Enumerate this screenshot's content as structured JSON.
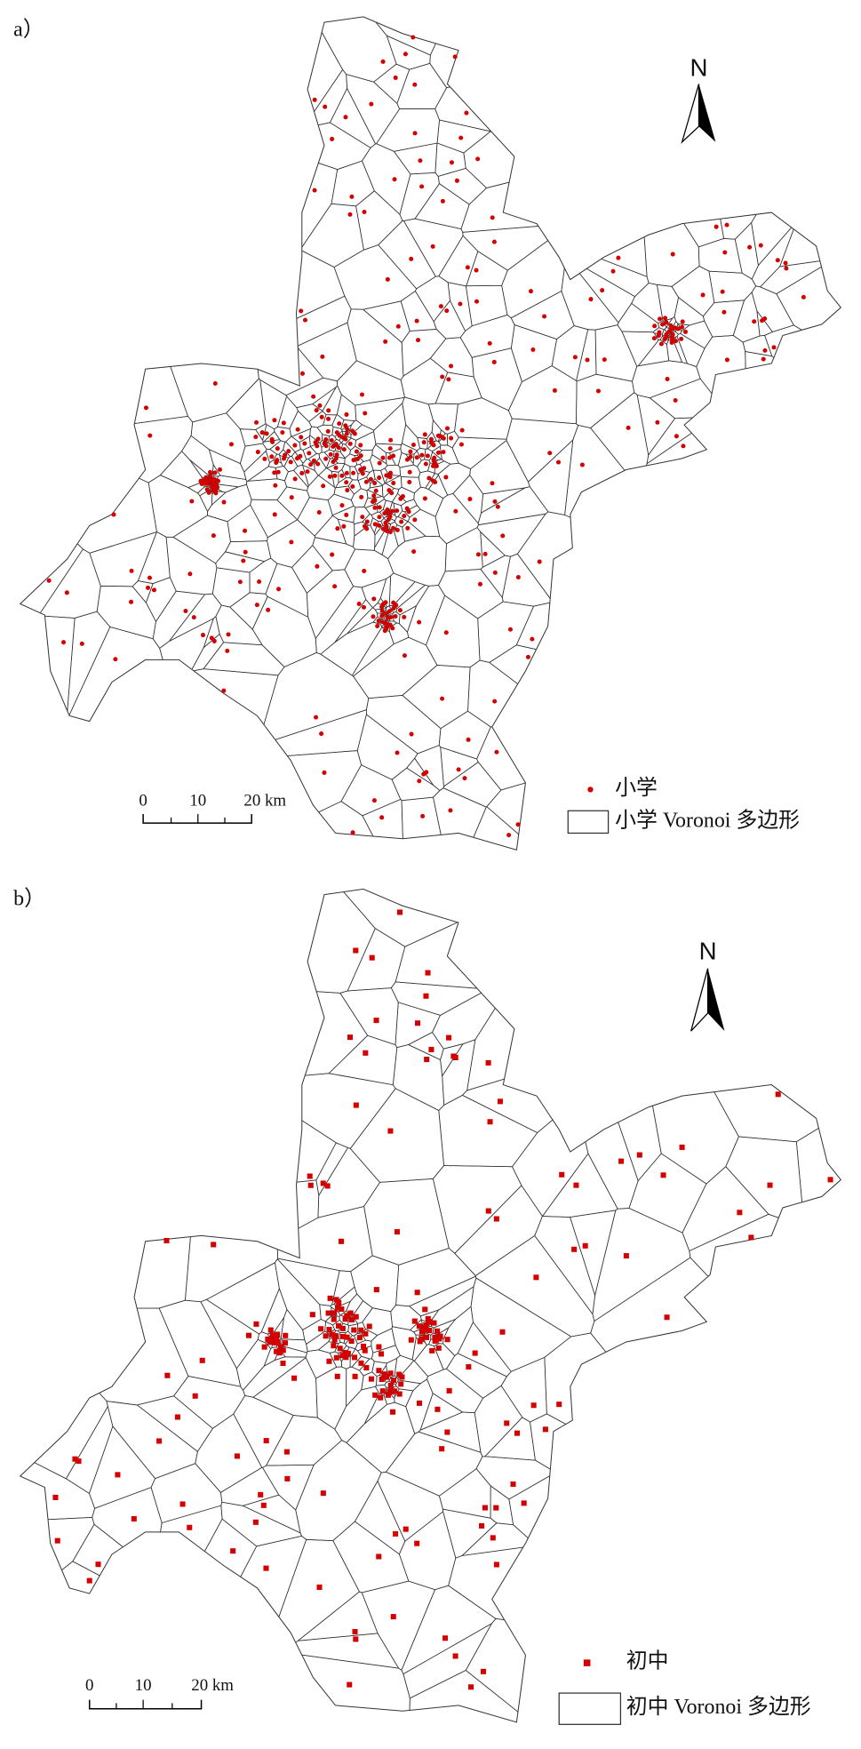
{
  "panels": [
    {
      "label": "a）",
      "north": "N",
      "scale": [
        "0",
        "10",
        "20 km"
      ],
      "legend": [
        "小学",
        "小学 Voronoi 多边形"
      ]
    },
    {
      "label": "b）",
      "north": "N",
      "scale": [
        "0",
        "10",
        "20 km"
      ],
      "legend": [
        "初中",
        "初中 Voronoi 多边形"
      ]
    }
  ]
}
